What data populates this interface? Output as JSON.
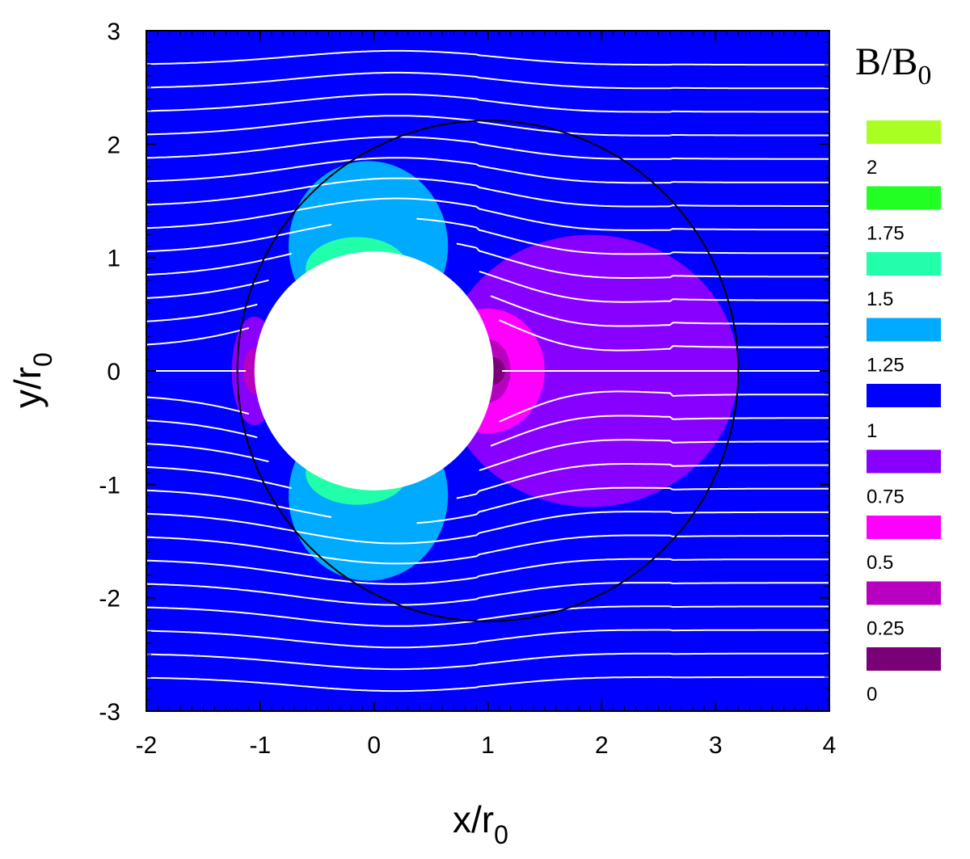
{
  "chart_data": {
    "type": "heatmap",
    "xlabel": {
      "main": "x/r",
      "sub": "0"
    },
    "ylabel": {
      "main": "y/r",
      "sub": "0"
    },
    "xlim": [
      -2,
      4
    ],
    "ylim": [
      -3,
      3
    ],
    "xticks": [
      "-2",
      "-1",
      "0",
      "1",
      "2",
      "3",
      "4"
    ],
    "yticks": [
      "3",
      "2",
      "1",
      "0",
      "-1",
      "-2",
      "-3"
    ],
    "background_level": 1.0,
    "legend": {
      "title": {
        "main": "B/B",
        "sub": "0"
      },
      "levels": [
        {
          "label": "2",
          "color": "#aaff22"
        },
        {
          "label": "1.75",
          "color": "#22ff22"
        },
        {
          "label": "1.5",
          "color": "#22ffaa"
        },
        {
          "label": "1.25",
          "color": "#00aaff"
        },
        {
          "label": "1",
          "color": "#0000ff"
        },
        {
          "label": "0.75",
          "color": "#8800ff"
        },
        {
          "label": "0.5",
          "color": "#ff00ff"
        },
        {
          "label": "0.25",
          "color": "#b800c0"
        },
        {
          "label": "0",
          "color": "#7a0077"
        }
      ]
    },
    "regions": [
      {
        "name": "high-field-top",
        "level": 1.25,
        "cx": -0.05,
        "cy": 1.1,
        "rx": 0.7,
        "ry": 0.75
      },
      {
        "name": "high-field-bottom",
        "level": 1.25,
        "cx": -0.05,
        "cy": -1.1,
        "rx": 0.7,
        "ry": 0.75
      },
      {
        "name": "peak-top",
        "level": 1.5,
        "cx": -0.15,
        "cy": 0.9,
        "rx": 0.45,
        "ry": 0.28
      },
      {
        "name": "peak-bottom",
        "level": 1.5,
        "cx": -0.15,
        "cy": -0.9,
        "rx": 0.45,
        "ry": 0.28
      },
      {
        "name": "wake",
        "level": 0.75,
        "cx": 1.9,
        "cy": 0.0,
        "rx": 1.3,
        "ry": 1.2
      },
      {
        "name": "low-right",
        "level": 0.5,
        "cx": 1.0,
        "cy": 0.0,
        "rx": 0.5,
        "ry": 0.55
      },
      {
        "name": "min-right",
        "level": 0.25,
        "cx": 1.0,
        "cy": 0.0,
        "rx": 0.2,
        "ry": 0.28
      },
      {
        "name": "zero-right",
        "level": 0,
        "cx": 1.05,
        "cy": 0.0,
        "rx": 0.1,
        "ry": 0.12
      },
      {
        "name": "low-left",
        "level": 0.75,
        "cx": -1.05,
        "cy": 0.0,
        "rx": 0.2,
        "ry": 0.48
      },
      {
        "name": "min-left",
        "level": 0.25,
        "cx": -1.05,
        "cy": 0.0,
        "rx": 0.1,
        "ry": 0.2
      }
    ],
    "obstacle": {
      "cx": 0.0,
      "cy": 0.0,
      "r": 1.05,
      "color": "#ffffff"
    },
    "boundary_circle": {
      "cx": 1.0,
      "cy": 0.0,
      "r": 2.2,
      "color": "#000000"
    },
    "field_lines": {
      "count": 27,
      "y_min": -2.7,
      "y_max": 2.7,
      "color": "#ffffff"
    }
  }
}
